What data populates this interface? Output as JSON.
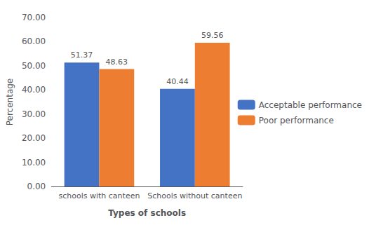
{
  "chart_data": {
    "type": "bar",
    "xlabel": "Types of schools",
    "ylabel": "Percentage",
    "categories": [
      "schools with canteen",
      "Schools without canteen"
    ],
    "series": [
      {
        "name": "Acceptable performance",
        "color": "#4472C4",
        "values": [
          51.37,
          40.44
        ]
      },
      {
        "name": "Poor performance",
        "color": "#ED7D31",
        "values": [
          48.63,
          59.56
        ]
      }
    ],
    "ylim": [
      0,
      70
    ],
    "yticks": [
      {
        "value": 0,
        "label": "0.00"
      },
      {
        "value": 10,
        "label": "10.00"
      },
      {
        "value": 20,
        "label": "20.00"
      },
      {
        "value": 30,
        "label": "30.00"
      },
      {
        "value": 40,
        "label": "40.00"
      },
      {
        "value": 50,
        "label": "50.00"
      },
      {
        "value": 60,
        "label": "60.00"
      },
      {
        "value": 70,
        "label": "70.00"
      }
    ],
    "grid": false,
    "legend": "right",
    "data_labels": true
  }
}
